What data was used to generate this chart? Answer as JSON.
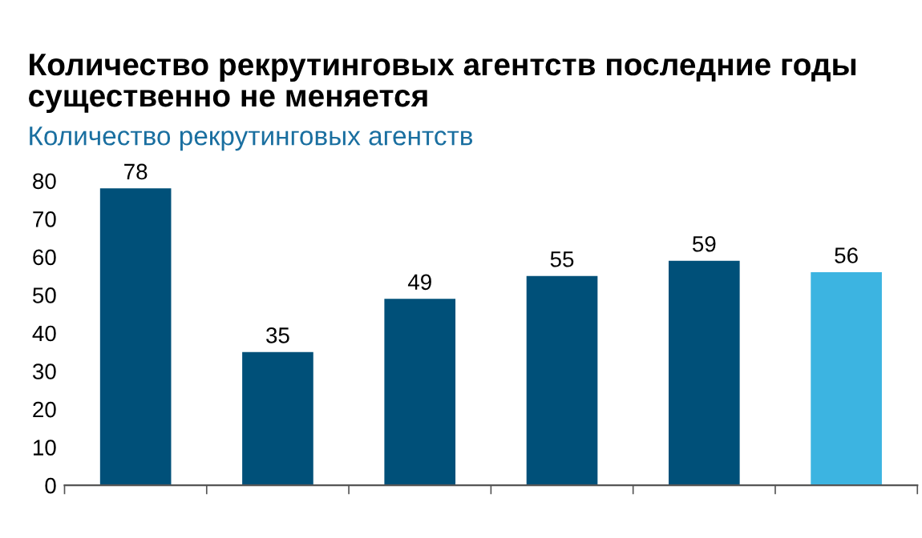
{
  "chart_data": {
    "type": "bar",
    "title": "Количество рекрутинговых агентств последние годы\nсущественно не меняется",
    "subtitle": "Количество рекрутинговых агентств",
    "categories": [
      null,
      null,
      null,
      null,
      null,
      null
    ],
    "values": [
      78,
      35,
      49,
      55,
      59,
      56
    ],
    "colors": [
      "#005079",
      "#005079",
      "#005079",
      "#005079",
      "#005079",
      "#3cb4e1"
    ],
    "ylim": [
      0,
      80
    ],
    "yticks": [
      0,
      10,
      20,
      30,
      40,
      50,
      60,
      70,
      80
    ],
    "data_labels": true,
    "grid": false,
    "legend": false
  }
}
